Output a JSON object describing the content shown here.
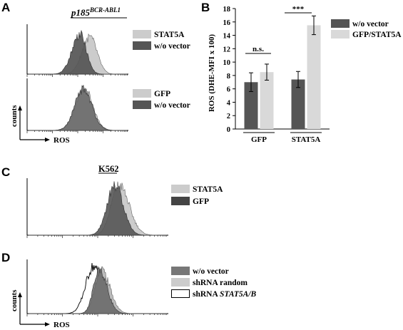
{
  "panels": {
    "A": {
      "letter": "A",
      "title_main": "p185",
      "title_sup": "BCR-ABL1",
      "top_legend": [
        "STAT5A",
        "w/o vector"
      ],
      "bottom_legend": [
        "GFP",
        "w/o vector"
      ],
      "y_label": "counts",
      "x_label": "ROS"
    },
    "B": {
      "letter": "B"
    },
    "C": {
      "letter": "C",
      "title": "K562",
      "legend": [
        "STAT5A",
        "GFP"
      ]
    },
    "D": {
      "letter": "D",
      "legend_1": "w/o vector",
      "legend_2": "shRNA random",
      "legend_3_prefix": "shRNA ",
      "legend_3_italic": "STAT5A/B",
      "y_label": "counts",
      "x_label": "ROS"
    }
  },
  "colors": {
    "dark": "#555555",
    "light": "#cccccc",
    "outline": "#000000"
  },
  "chart_data": [
    {
      "type": "bar",
      "categories": [
        "GFP",
        "STAT5A"
      ],
      "series": [
        {
          "name": "w/o vector",
          "values": [
            7.0,
            7.4
          ],
          "errors": [
            1.4,
            1.2
          ],
          "color": "#555555"
        },
        {
          "name": "GFP/STAT5A",
          "values": [
            8.5,
            15.5
          ],
          "errors": [
            1.2,
            1.4
          ],
          "color": "#d9d9d9"
        }
      ],
      "ylabel": "ROS (DHE-MFI x 100)",
      "xlabel": "",
      "ylim": [
        0,
        18
      ],
      "yticks": [
        "0",
        "2",
        "4",
        "6",
        "8",
        "10",
        "12",
        "14",
        "16",
        "18"
      ],
      "annotations": [
        "n.s.",
        "***"
      ],
      "legend_position": "top-right"
    }
  ]
}
